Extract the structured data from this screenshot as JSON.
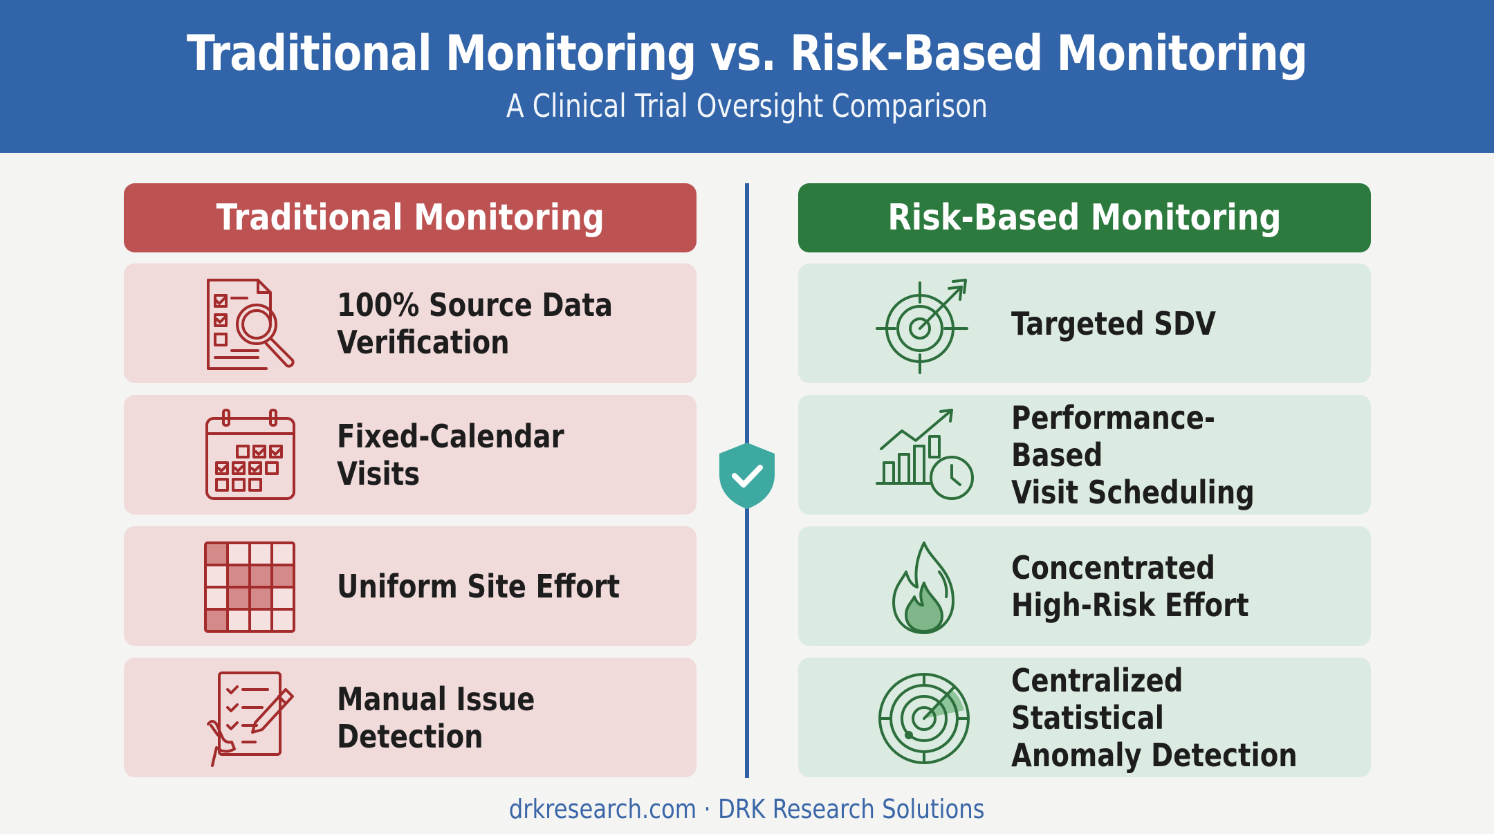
{
  "header": {
    "title": "Traditional Monitoring vs. Risk-Based Monitoring",
    "subtitle": "A Clinical Trial Oversight Comparison"
  },
  "columns": {
    "traditional": {
      "title": "Traditional Monitoring",
      "color": "#bd5252",
      "items": [
        {
          "label": "100% Source Data\nVerification",
          "icon": "document-magnifier-icon"
        },
        {
          "label": "Fixed-Calendar Visits",
          "icon": "calendar-icon"
        },
        {
          "label": "Uniform Site Effort",
          "icon": "grid-icon"
        },
        {
          "label": "Manual Issue Detection",
          "icon": "checklist-pen-icon"
        }
      ]
    },
    "risk_based": {
      "title": "Risk-Based Monitoring",
      "color": "#2c7a3e",
      "items": [
        {
          "label": "Targeted SDV",
          "icon": "target-arrow-icon"
        },
        {
          "label": "Performance-Based\nVisit Scheduling",
          "icon": "chart-clock-icon"
        },
        {
          "label": "Concentrated\nHigh-Risk Effort",
          "icon": "flame-icon"
        },
        {
          "label": "Centralized Statistical\nAnomaly Detection",
          "icon": "radar-icon"
        }
      ]
    }
  },
  "divider": {
    "icon": "shield-check-icon",
    "color": "#2f5fa5"
  },
  "footer": {
    "text": "drkresearch.com · DRK Research Solutions"
  }
}
